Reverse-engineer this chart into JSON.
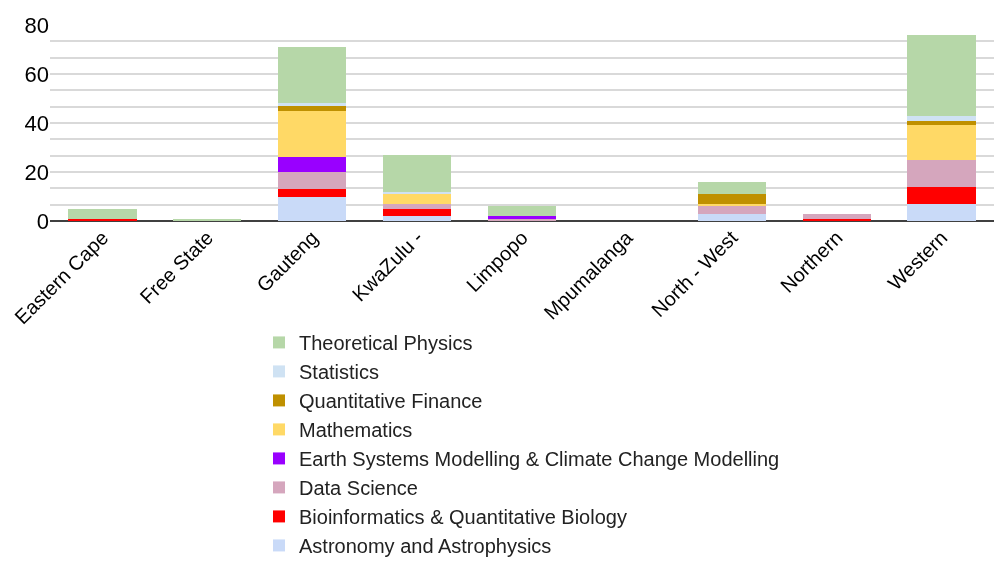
{
  "chart_data": {
    "type": "bar",
    "stacked": true,
    "categories": [
      "Eastern Cape",
      "Free State",
      "Gauteng",
      "KwaZulu -",
      "Limpopo",
      "Mpumalanga",
      "North - West",
      "Northern",
      "Western"
    ],
    "series": [
      {
        "name": "Astronomy and Astrophysics",
        "color": "#c9daf8",
        "values": [
          0,
          0,
          10,
          2,
          0,
          0,
          3,
          0,
          7
        ]
      },
      {
        "name": "Bioinformatics & Quantitative Biology",
        "color": "#ff0000",
        "values": [
          1,
          0,
          3,
          3,
          0,
          0,
          0,
          1,
          7
        ]
      },
      {
        "name": "Data Science",
        "color": "#d5a6bd",
        "values": [
          0,
          0,
          7,
          2,
          1,
          0,
          3,
          2,
          11
        ]
      },
      {
        "name": "Earth Systems Modelling & Climate Change Modelling",
        "color": "#9900ff",
        "values": [
          0,
          0,
          6,
          0,
          1,
          0,
          0,
          0,
          0
        ]
      },
      {
        "name": "Mathematics",
        "color": "#ffd966",
        "values": [
          0,
          0,
          19,
          4,
          0,
          0,
          1,
          0,
          14
        ]
      },
      {
        "name": "Quantitative Finance",
        "color": "#bf9000",
        "values": [
          0,
          0,
          2,
          0,
          0,
          0,
          4,
          0,
          2
        ]
      },
      {
        "name": "Statistics",
        "color": "#cfe2f3",
        "values": [
          0,
          0,
          1,
          1,
          0,
          0,
          0,
          0,
          2
        ]
      },
      {
        "name": "Theoretical Physics",
        "color": "#b6d7a8",
        "values": [
          4,
          1,
          23,
          15,
          4,
          0,
          5,
          0,
          33
        ]
      }
    ],
    "ylim": [
      0,
      80
    ],
    "yticks": [
      0,
      {
        "value": 6.67,
        "label": null
      },
      {
        "value": 13.33,
        "label": null
      },
      20,
      {
        "value": 26.67,
        "label": null
      },
      {
        "value": 33.33,
        "label": null
      },
      40,
      {
        "value": 46.67,
        "label": null
      },
      {
        "value": 53.33,
        "label": null
      },
      60,
      {
        "value": 66.67,
        "label": null
      },
      {
        "value": 73.33,
        "label": null
      },
      80
    ],
    "grid": "y",
    "legend": "bottom"
  }
}
